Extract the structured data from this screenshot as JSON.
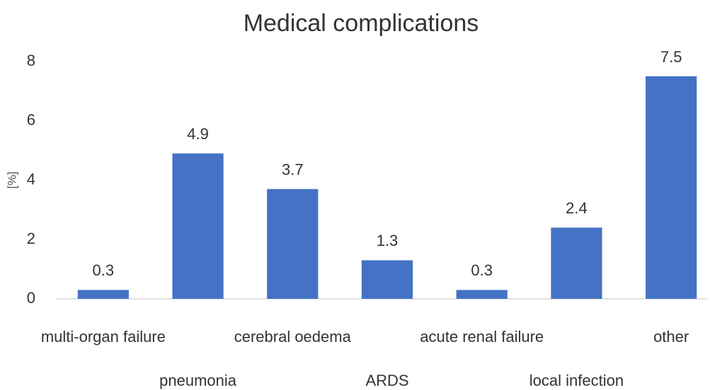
{
  "chart_data": {
    "type": "bar",
    "title": "Medical complications",
    "y_label": "[%]",
    "categories": [
      "multi-organ failure",
      "pneumonia",
      "cerebral oedema",
      "ARDS",
      "acute renal failure",
      "local infection",
      "other"
    ],
    "values": [
      0.3,
      4.9,
      3.7,
      1.3,
      0.3,
      2.4,
      7.5
    ],
    "color": "#4472c4",
    "ylim": [
      0,
      8
    ],
    "yticks": [
      0,
      2,
      4,
      6,
      8
    ],
    "grid": false
  }
}
